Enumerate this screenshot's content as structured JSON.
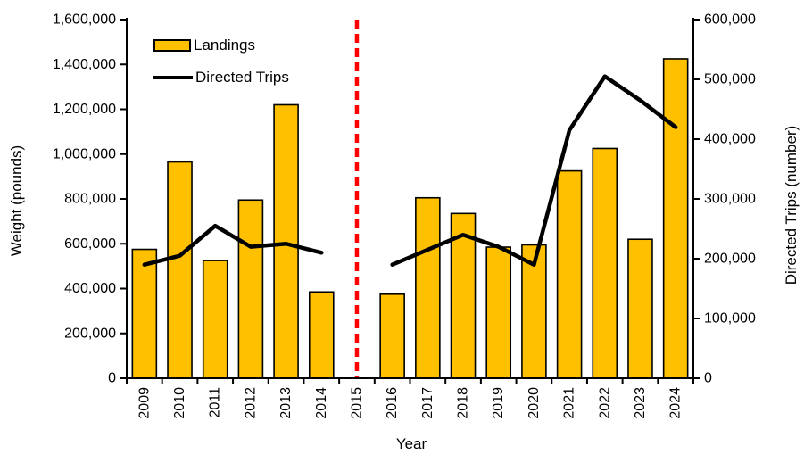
{
  "chart_data": {
    "type": "bar+line combo",
    "categories": [
      "2009",
      "2010",
      "2011",
      "2012",
      "2013",
      "2014",
      "2015",
      "2016",
      "2017",
      "2018",
      "2019",
      "2020",
      "2021",
      "2022",
      "2023",
      "2024"
    ],
    "series": [
      {
        "name": "Landings",
        "type": "bar",
        "axis": "left",
        "color": "#FFC000",
        "border_color": "#000000",
        "values": [
          575000,
          965000,
          525000,
          795000,
          1220000,
          385000,
          null,
          375000,
          805000,
          735000,
          585000,
          595000,
          925000,
          1025000,
          620000,
          1425000
        ]
      },
      {
        "name": "Directed Trips",
        "type": "line",
        "axis": "right",
        "color": "#000000",
        "values": [
          190000,
          205000,
          255000,
          220000,
          225000,
          210000,
          null,
          190000,
          215000,
          240000,
          220000,
          190000,
          415000,
          505000,
          465000,
          420000
        ]
      }
    ],
    "annotations": [
      {
        "type": "vline",
        "category": "2015",
        "color": "#FF0000",
        "style": "dashed",
        "meaning": "break between time periods"
      }
    ],
    "left_axis": {
      "label": "Weight (pounds)",
      "min": 0,
      "max": 1600000,
      "step": 200000,
      "tick_labels": [
        "0",
        "200,000",
        "400,000",
        "600,000",
        "800,000",
        "1,000,000",
        "1,200,000",
        "1,400,000",
        "1,600,000"
      ]
    },
    "right_axis": {
      "label": "Directed Trips (number)",
      "min": 0,
      "max": 600000,
      "step": 100000,
      "tick_labels": [
        "0",
        "100,000",
        "200,000",
        "300,000",
        "400,000",
        "500,000",
        "600,000"
      ]
    },
    "xlabel": "Year",
    "title": "",
    "grid": "off",
    "legend_position": "top-left inside plot"
  },
  "colors": {
    "bar_fill": "#FFC000",
    "line": "#000000",
    "annotation_line": "#FF0000",
    "axis": "#000000",
    "background": "#FFFFFF"
  }
}
